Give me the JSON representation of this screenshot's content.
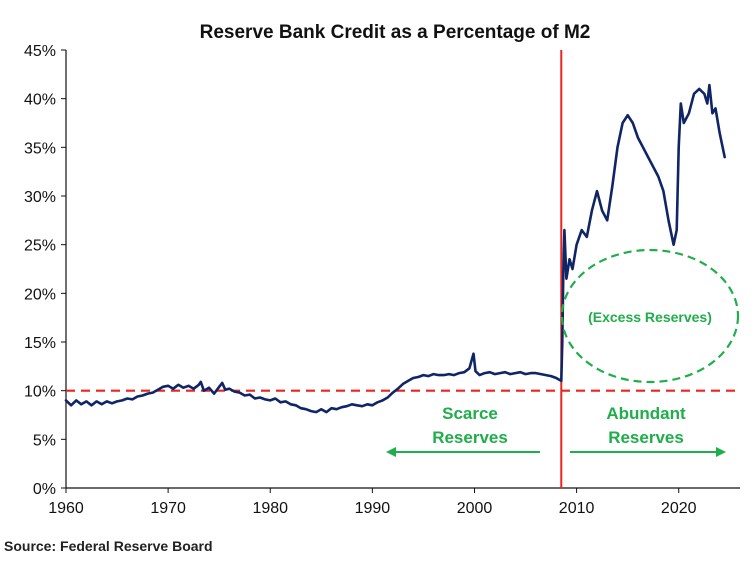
{
  "chart_data": {
    "type": "line",
    "title": "Reserve Bank Credit as a Percentage of M2",
    "xlabel": "",
    "ylabel": "",
    "xlim": [
      1960,
      2026
    ],
    "ylim": [
      0,
      45
    ],
    "x_ticks": [
      1960,
      1970,
      1980,
      1990,
      2000,
      2010,
      2020
    ],
    "y_ticks": [
      0,
      5,
      10,
      15,
      20,
      25,
      30,
      35,
      40,
      45
    ],
    "y_tick_labels": [
      "0%",
      "5%",
      "10%",
      "15%",
      "20%",
      "25%",
      "30%",
      "35%",
      "40%",
      "45%"
    ],
    "grid": false,
    "legend": "none",
    "series": [
      {
        "color": "#0f2566",
        "points": [
          [
            1960.0,
            9.0
          ],
          [
            1960.5,
            8.5
          ],
          [
            1961.0,
            9.0
          ],
          [
            1961.5,
            8.6
          ],
          [
            1962.0,
            8.9
          ],
          [
            1962.5,
            8.5
          ],
          [
            1963.0,
            8.9
          ],
          [
            1963.5,
            8.6
          ],
          [
            1964.0,
            8.9
          ],
          [
            1964.5,
            8.7
          ],
          [
            1965.0,
            8.9
          ],
          [
            1965.5,
            9.0
          ],
          [
            1966.0,
            9.2
          ],
          [
            1966.5,
            9.1
          ],
          [
            1967.0,
            9.4
          ],
          [
            1967.5,
            9.5
          ],
          [
            1968.0,
            9.7
          ],
          [
            1968.5,
            9.8
          ],
          [
            1969.0,
            10.1
          ],
          [
            1969.5,
            10.4
          ],
          [
            1970.0,
            10.5
          ],
          [
            1970.5,
            10.2
          ],
          [
            1971.0,
            10.6
          ],
          [
            1971.5,
            10.3
          ],
          [
            1972.0,
            10.5
          ],
          [
            1972.5,
            10.2
          ],
          [
            1973.0,
            10.6
          ],
          [
            1973.2,
            10.9
          ],
          [
            1973.5,
            10.0
          ],
          [
            1974.0,
            10.3
          ],
          [
            1974.5,
            9.7
          ],
          [
            1975.0,
            10.4
          ],
          [
            1975.3,
            10.8
          ],
          [
            1975.6,
            10.1
          ],
          [
            1976.0,
            10.2
          ],
          [
            1976.5,
            9.9
          ],
          [
            1977.0,
            9.8
          ],
          [
            1977.5,
            9.5
          ],
          [
            1978.0,
            9.6
          ],
          [
            1978.5,
            9.2
          ],
          [
            1979.0,
            9.3
          ],
          [
            1979.5,
            9.1
          ],
          [
            1980.0,
            9.0
          ],
          [
            1980.5,
            9.2
          ],
          [
            1981.0,
            8.8
          ],
          [
            1981.5,
            8.9
          ],
          [
            1982.0,
            8.6
          ],
          [
            1982.5,
            8.5
          ],
          [
            1983.0,
            8.2
          ],
          [
            1983.5,
            8.1
          ],
          [
            1984.0,
            7.9
          ],
          [
            1984.5,
            7.8
          ],
          [
            1985.0,
            8.1
          ],
          [
            1985.5,
            7.8
          ],
          [
            1986.0,
            8.2
          ],
          [
            1986.5,
            8.1
          ],
          [
            1987.0,
            8.3
          ],
          [
            1987.5,
            8.4
          ],
          [
            1988.0,
            8.6
          ],
          [
            1988.5,
            8.5
          ],
          [
            1989.0,
            8.4
          ],
          [
            1989.5,
            8.6
          ],
          [
            1990.0,
            8.5
          ],
          [
            1990.5,
            8.8
          ],
          [
            1991.0,
            9.0
          ],
          [
            1991.5,
            9.3
          ],
          [
            1992.0,
            9.8
          ],
          [
            1992.5,
            10.2
          ],
          [
            1993.0,
            10.7
          ],
          [
            1993.5,
            11.0
          ],
          [
            1994.0,
            11.3
          ],
          [
            1994.5,
            11.4
          ],
          [
            1995.0,
            11.6
          ],
          [
            1995.5,
            11.5
          ],
          [
            1996.0,
            11.7
          ],
          [
            1996.5,
            11.6
          ],
          [
            1997.0,
            11.6
          ],
          [
            1997.5,
            11.7
          ],
          [
            1998.0,
            11.6
          ],
          [
            1998.5,
            11.8
          ],
          [
            1999.0,
            11.9
          ],
          [
            1999.5,
            12.3
          ],
          [
            1999.9,
            13.8
          ],
          [
            2000.1,
            12.0
          ],
          [
            2000.5,
            11.6
          ],
          [
            2001.0,
            11.8
          ],
          [
            2001.5,
            11.9
          ],
          [
            2002.0,
            11.7
          ],
          [
            2002.5,
            11.8
          ],
          [
            2003.0,
            11.9
          ],
          [
            2003.5,
            11.7
          ],
          [
            2004.0,
            11.8
          ],
          [
            2004.5,
            11.9
          ],
          [
            2005.0,
            11.7
          ],
          [
            2005.5,
            11.8
          ],
          [
            2006.0,
            11.8
          ],
          [
            2006.5,
            11.7
          ],
          [
            2007.0,
            11.6
          ],
          [
            2007.5,
            11.5
          ],
          [
            2008.0,
            11.3
          ],
          [
            2008.5,
            11.0
          ],
          [
            2008.6,
            15.0
          ],
          [
            2008.7,
            22.0
          ],
          [
            2008.8,
            26.5
          ],
          [
            2009.0,
            21.5
          ],
          [
            2009.3,
            23.5
          ],
          [
            2009.6,
            22.5
          ],
          [
            2010.0,
            25.0
          ],
          [
            2010.5,
            26.5
          ],
          [
            2011.0,
            25.8
          ],
          [
            2011.5,
            28.5
          ],
          [
            2012.0,
            30.5
          ],
          [
            2012.5,
            28.5
          ],
          [
            2013.0,
            27.5
          ],
          [
            2013.5,
            31.0
          ],
          [
            2014.0,
            35.0
          ],
          [
            2014.5,
            37.5
          ],
          [
            2015.0,
            38.3
          ],
          [
            2015.5,
            37.5
          ],
          [
            2016.0,
            36.0
          ],
          [
            2016.5,
            35.0
          ],
          [
            2017.0,
            34.0
          ],
          [
            2017.5,
            33.0
          ],
          [
            2018.0,
            32.0
          ],
          [
            2018.5,
            30.5
          ],
          [
            2019.0,
            27.5
          ],
          [
            2019.5,
            25.0
          ],
          [
            2019.8,
            26.5
          ],
          [
            2020.0,
            35.0
          ],
          [
            2020.2,
            39.5
          ],
          [
            2020.5,
            37.5
          ],
          [
            2021.0,
            38.5
          ],
          [
            2021.5,
            40.5
          ],
          [
            2022.0,
            41.0
          ],
          [
            2022.5,
            40.5
          ],
          [
            2022.8,
            39.5
          ],
          [
            2023.0,
            41.4
          ],
          [
            2023.3,
            38.5
          ],
          [
            2023.6,
            39.0
          ],
          [
            2024.0,
            36.5
          ],
          [
            2024.5,
            34.0
          ]
        ]
      }
    ],
    "reference_lines": {
      "horizontal": {
        "y": 10,
        "color": "#e8251f",
        "style": "dashed"
      },
      "vertical": {
        "x": 2008.5,
        "color": "#e8251f",
        "style": "solid"
      }
    },
    "annotations": {
      "scarce_line1": "Scarce",
      "scarce_line2": "Reserves",
      "abundant_line1": "Abundant",
      "abundant_line2": "Reserves",
      "excess": "(Excess Reserves)",
      "annotation_color": "#1fae4b"
    },
    "source": "Source: Federal Reserve Board"
  }
}
